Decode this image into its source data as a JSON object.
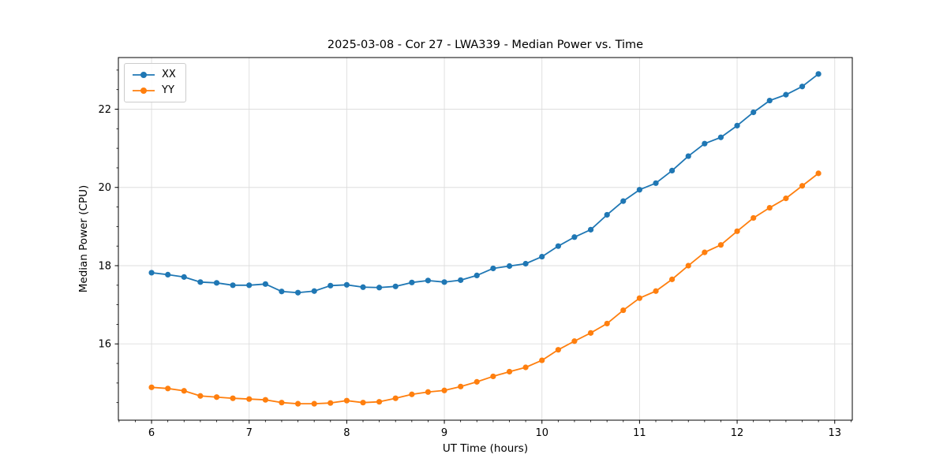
{
  "figure": {
    "title": "2025-03-08 - Cor 27 - LWA339 - Median Power vs. Time",
    "xlabel": "UT Time (hours)",
    "ylabel": "Median Power (CPU)"
  },
  "legend": {
    "items": [
      {
        "label": "XX",
        "color": "#1f77b4"
      },
      {
        "label": "YY",
        "color": "#ff7f0e"
      }
    ]
  },
  "chart_data": {
    "type": "line",
    "title": "2025-03-08 - Cor 27 - LWA339 - Median Power vs. Time",
    "xlabel": "UT Time (hours)",
    "ylabel": "Median Power (CPU)",
    "x": [
      6.0,
      6.167,
      6.333,
      6.5,
      6.667,
      6.833,
      7.0,
      7.167,
      7.333,
      7.5,
      7.667,
      7.833,
      8.0,
      8.167,
      8.333,
      8.5,
      8.667,
      8.833,
      9.0,
      9.167,
      9.333,
      9.5,
      9.667,
      9.833,
      10.0,
      10.167,
      10.333,
      10.5,
      10.667,
      10.833,
      11.0,
      11.167,
      11.333,
      11.5,
      11.667,
      11.833,
      12.0,
      12.167,
      12.333,
      12.5,
      12.667,
      12.833
    ],
    "series": [
      {
        "name": "XX",
        "color": "#1f77b4",
        "values": [
          17.82,
          17.77,
          17.71,
          17.58,
          17.56,
          17.5,
          17.5,
          17.53,
          17.34,
          17.31,
          17.35,
          17.49,
          17.51,
          17.45,
          17.44,
          17.47,
          17.57,
          17.62,
          17.58,
          17.63,
          17.75,
          17.93,
          17.99,
          18.05,
          18.23,
          18.5,
          18.73,
          18.92,
          19.3,
          19.65,
          19.94,
          20.11,
          20.43,
          20.8,
          21.12,
          21.28,
          21.58,
          21.92,
          22.22,
          22.37,
          22.58,
          22.9
        ]
      },
      {
        "name": "YY",
        "color": "#ff7f0e",
        "values": [
          14.89,
          14.86,
          14.8,
          14.67,
          14.64,
          14.61,
          14.59,
          14.57,
          14.5,
          14.47,
          14.47,
          14.49,
          14.55,
          14.5,
          14.52,
          14.61,
          14.71,
          14.77,
          14.81,
          14.91,
          15.03,
          15.17,
          15.29,
          15.4,
          15.58,
          15.85,
          16.07,
          16.28,
          16.52,
          16.86,
          17.17,
          17.35,
          17.65,
          18.0,
          18.34,
          18.53,
          18.88,
          19.22,
          19.48,
          19.72,
          20.04,
          20.36
        ]
      }
    ],
    "xlim": [
      5.66,
      13.18
    ],
    "ylim": [
      14.05,
      23.32
    ],
    "xticks": [
      6,
      7,
      8,
      9,
      10,
      11,
      12,
      13
    ],
    "yticks": [
      16,
      18,
      20,
      22
    ],
    "x_minor_step": 0.1666667,
    "y_minor_step": 0.5,
    "grid": true,
    "grid_color": "#dddddd",
    "spine_color": "#000000",
    "tick_color": "#000000",
    "legend_position": "upper left",
    "background": "#ffffff"
  }
}
